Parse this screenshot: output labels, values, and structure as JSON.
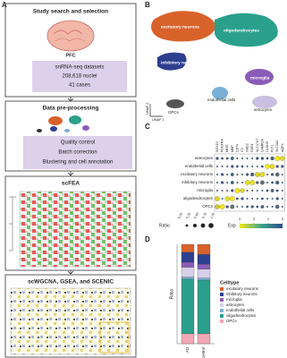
{
  "figure": {
    "panel_labels": [
      "A",
      "B",
      "C",
      "D"
    ],
    "study": {
      "title": "Study search and selection",
      "region": "PFC",
      "lines": [
        "snRNA-seq datasets",
        "208,618 nuclei",
        "41 cases"
      ]
    },
    "preprocessing": {
      "title": "Data pre-processing",
      "lines": [
        "Quality control",
        "Batch correction",
        "Blustering and cell annotation"
      ]
    },
    "scfea": {
      "title": "scFEA"
    },
    "network": {
      "title": "scWGCNA, GSEA, and SCENIC"
    },
    "umap": {
      "labels": [
        "excitatory neurons",
        "oligodendrocytes",
        "inhibitory neurons",
        "microglia",
        "endothelial cells",
        "astrocytes",
        "OPCs"
      ],
      "x_label": "UMAP 1",
      "y_label": "UMAP 2"
    }
  },
  "chart_data": [
    {
      "type": "dot",
      "categories": [
        "astrocytes",
        "endothelial cells",
        "excitatory neurons",
        "inhibitory neurons",
        "microglia",
        "oligodendrocytes",
        "OPCs"
      ],
      "columns": [
        "SOX10",
        "PDGFRA",
        "MOG",
        "MBP",
        "CD74",
        "C3",
        "GAD2",
        "GAD1",
        "SLC17A7",
        "CAMK2A",
        "CLDN5",
        "FLT1",
        "SLC1A2",
        "AQP4"
      ],
      "exp": [
        [
          0.3,
          0.2,
          0.1,
          0.3,
          0.1,
          0.1,
          0.1,
          0.1,
          0.2,
          0.2,
          0.2,
          0.5,
          3,
          2.8
        ],
        [
          0.1,
          0.1,
          0.1,
          0.2,
          0.2,
          0.2,
          0.1,
          0.1,
          0.1,
          0.1,
          3,
          2.8,
          0.3,
          0.3
        ],
        [
          0.1,
          0.2,
          0.1,
          0.3,
          0.1,
          0.1,
          0.3,
          0.5,
          2.6,
          2.8,
          0.1,
          0.3,
          0.6,
          0.1
        ],
        [
          0.1,
          0.2,
          0.1,
          0.3,
          0.1,
          0.1,
          2.8,
          2.9,
          0.3,
          0.8,
          0.1,
          0.2,
          0.5,
          0.1
        ],
        [
          0.1,
          0.1,
          0.1,
          0.3,
          3,
          2.7,
          0.1,
          0.1,
          0.1,
          0.1,
          0.2,
          0.4,
          0.2,
          0.1
        ],
        [
          2.6,
          0.1,
          2.8,
          3,
          0.2,
          0.3,
          0.1,
          0.1,
          0.1,
          0.2,
          0.1,
          0.1,
          0.3,
          0.1
        ],
        [
          2.4,
          3,
          0.3,
          0.8,
          0.1,
          0.1,
          0.2,
          0.3,
          0.2,
          0.4,
          0.1,
          0.1,
          0.6,
          0.1
        ]
      ],
      "ratio": [
        [
          0.3,
          0.2,
          0.2,
          0.4,
          0.1,
          0.1,
          0.1,
          0.1,
          0.3,
          0.3,
          0.2,
          0.5,
          0.95,
          0.9
        ],
        [
          0.1,
          0.1,
          0.1,
          0.3,
          0.2,
          0.2,
          0.1,
          0.1,
          0.1,
          0.2,
          0.9,
          0.9,
          0.3,
          0.3
        ],
        [
          0.1,
          0.3,
          0.1,
          0.4,
          0.1,
          0.1,
          0.3,
          0.5,
          0.9,
          0.95,
          0.1,
          0.3,
          0.6,
          0.1
        ],
        [
          0.1,
          0.3,
          0.1,
          0.4,
          0.1,
          0.1,
          0.9,
          0.95,
          0.3,
          0.7,
          0.1,
          0.2,
          0.5,
          0.1
        ],
        [
          0.1,
          0.1,
          0.1,
          0.3,
          0.95,
          0.8,
          0.1,
          0.1,
          0.1,
          0.1,
          0.2,
          0.4,
          0.2,
          0.1
        ],
        [
          0.9,
          0.1,
          0.9,
          0.95,
          0.2,
          0.3,
          0.1,
          0.1,
          0.1,
          0.2,
          0.1,
          0.1,
          0.3,
          0.1
        ],
        [
          0.85,
          0.95,
          0.3,
          0.7,
          0.1,
          0.1,
          0.2,
          0.3,
          0.2,
          0.4,
          0.1,
          0.1,
          0.6,
          0.1
        ]
      ],
      "size_title": "Ratio",
      "size_lim": [
        0,
        1
      ],
      "size_ticks": [
        {
          "value": 0,
          "label": "0.00"
        },
        {
          "value": 0.25,
          "label": "0.25"
        },
        {
          "value": 0.5,
          "label": "0.50"
        },
        {
          "value": 0.75,
          "label": "0.75"
        },
        {
          "value": 1,
          "label": "1.00"
        }
      ],
      "color_title": "Exp",
      "clim": [
        0,
        3
      ],
      "cticks": [
        3,
        2,
        1,
        0
      ],
      "colors": [
        "#2f4a8c",
        "#f4e61e"
      ]
    },
    {
      "type": "stacked_bar",
      "categories": [
        "AD",
        "Control"
      ],
      "y_label": "Ratio",
      "ylim": [
        0,
        1
      ],
      "legend_title": "Celltype",
      "series": [
        {
          "name": "excitatory neurons",
          "color": "#d9622b",
          "values": [
            0.08,
            0.1
          ]
        },
        {
          "name": "inhibitory neurons",
          "color": "#2d3f8f",
          "values": [
            0.1,
            0.1
          ]
        },
        {
          "name": "microglia",
          "color": "#8a5cb8",
          "values": [
            0.05,
            0.05
          ]
        },
        {
          "name": "astrocytes",
          "color": "#d8d0e8",
          "values": [
            0.1,
            0.09
          ]
        },
        {
          "name": "endothelial cells",
          "color": "#79b0d8",
          "values": [
            0.02,
            0.02
          ]
        },
        {
          "name": "oligodendrocytes",
          "color": "#2aa08c",
          "values": [
            0.55,
            0.54
          ]
        },
        {
          "name": "OPCs",
          "color": "#f2a7b4",
          "values": [
            0.1,
            0.1
          ]
        }
      ]
    }
  ]
}
